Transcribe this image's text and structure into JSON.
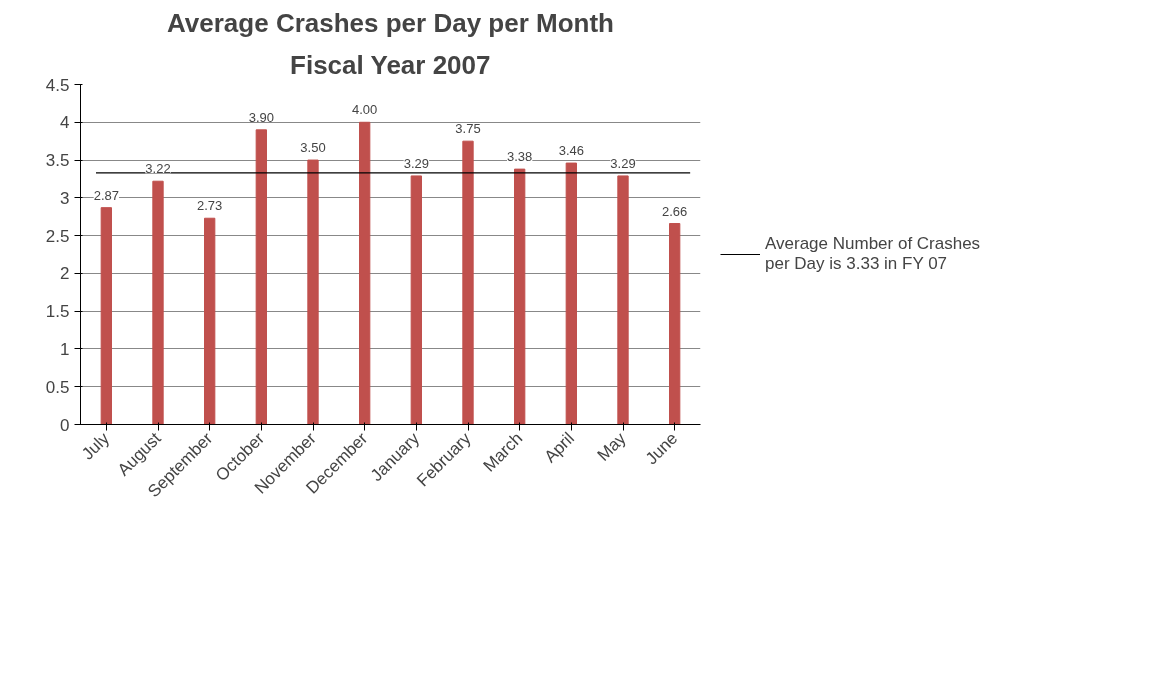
{
  "chart_data": {
    "type": "bar",
    "title": "Average Crashes per Day per Month",
    "subtitle": "Fiscal Year 2007",
    "categories": [
      "July",
      "August",
      "September",
      "October",
      "November",
      "December",
      "January",
      "February",
      "March",
      "April",
      "May",
      "June"
    ],
    "values": [
      2.87,
      3.22,
      2.73,
      3.9,
      3.5,
      4.0,
      3.29,
      3.75,
      3.38,
      3.46,
      3.29,
      2.66
    ],
    "value_labels": [
      "2.87",
      "3.22",
      "2.73",
      "3.90",
      "3.50",
      "4.00",
      "3.29",
      "3.75",
      "3.38",
      "3.46",
      "3.29",
      "2.66"
    ],
    "color": "#c0504d",
    "ylim": [
      0,
      4.5
    ],
    "yticks": [
      0,
      0.5,
      1,
      1.5,
      2,
      2.5,
      3,
      3.5,
      4,
      4.5
    ],
    "grid": "y",
    "legend": "right",
    "ref_lines": [
      {
        "axis": "y",
        "value": 3.33,
        "label": "Average Number of Crashes per Day is 3.33 in FY 07",
        "color": "#000000",
        "line_style": "solid"
      }
    ]
  }
}
